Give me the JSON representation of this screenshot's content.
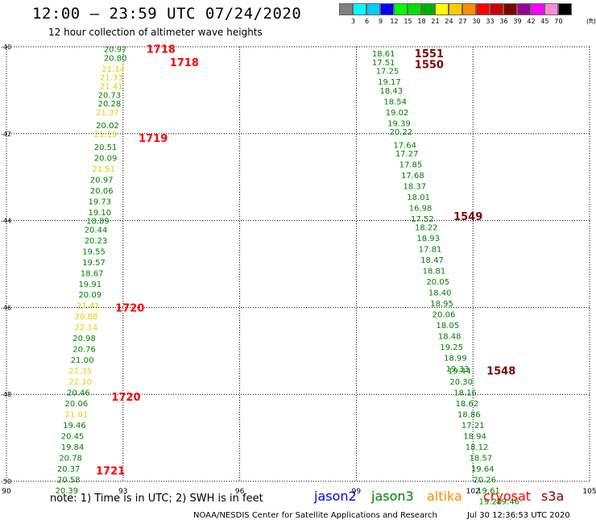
{
  "header": {
    "title": "12:00 — 23:59 UTC 07/24/2020",
    "subtitle": "12 hour collection of altimeter wave heights"
  },
  "colorbar": {
    "swatches": [
      "#808080",
      "#00ffff",
      "#00ccff",
      "#0000ff",
      "#00ff00",
      "#00e000",
      "#00b000",
      "#ffff00",
      "#ffcc00",
      "#ff8c00",
      "#ff0000",
      "#cc0000",
      "#800000",
      "#990099",
      "#ff00ff",
      "#ff88dd",
      "#000000"
    ],
    "labels": [
      "3",
      "6",
      "9",
      "12",
      "15",
      "18",
      "21",
      "24",
      "27",
      "30",
      "33",
      "36",
      "39",
      "42",
      "45",
      "70"
    ],
    "unit": "(ft)"
  },
  "note": "note:  1) Time is in UTC;  2) SWH is in feet",
  "satellites": [
    {
      "name": "jason2",
      "color": "#0000ff"
    },
    {
      "name": "jason3",
      "color": "#008000"
    },
    {
      "name": "altika",
      "color": "#ff8c00"
    },
    {
      "name": "cryosat",
      "color": "#ff0000"
    },
    {
      "name": "s3a",
      "color": "#800000"
    }
  ],
  "footer": {
    "credit": "NOAA/NESDIS Center for Satellite Applications and Research",
    "generated": "Jul 30 12:36:53 UTC 2020"
  },
  "chart_data": {
    "type": "scatter",
    "xlim": [
      90,
      105
    ],
    "ylim": [
      -50,
      -40
    ],
    "x_ticks": [
      "90",
      "93",
      "96",
      "99",
      "102",
      "105"
    ],
    "y_ticks": [
      "-40",
      "-42",
      "-44",
      "-46",
      "-48",
      "-50"
    ],
    "grid": true,
    "series": [
      {
        "satellite": "cryosat",
        "points": [
          {
            "lon": 92.8,
            "lat": -40.05,
            "swh": "20.97",
            "color": "#008000"
          },
          {
            "lon": 92.8,
            "lat": -40.25,
            "swh": "20.80",
            "color": "#008000"
          },
          {
            "lon": 92.75,
            "lat": -40.5,
            "swh": "21.14",
            "color": "#e0d000"
          },
          {
            "lon": 92.7,
            "lat": -40.7,
            "swh": "21.33",
            "color": "#e0d000"
          },
          {
            "lon": 92.7,
            "lat": -40.9,
            "swh": "21.41",
            "color": "#e0d000"
          },
          {
            "lon": 92.65,
            "lat": -41.1,
            "swh": "20.73",
            "color": "#008000"
          },
          {
            "lon": 92.65,
            "lat": -41.3,
            "swh": "20.28",
            "color": "#008000"
          },
          {
            "lon": 92.6,
            "lat": -41.5,
            "swh": "21.37",
            "color": "#e0d000"
          },
          {
            "lon": 92.6,
            "lat": -41.8,
            "swh": "20.02",
            "color": "#008000"
          },
          {
            "lon": 92.55,
            "lat": -42.0,
            "swh": "21.19",
            "color": "#e0d000"
          },
          {
            "lon": 92.55,
            "lat": -42.3,
            "swh": "20.51",
            "color": "#008000"
          },
          {
            "lon": 92.55,
            "lat": -42.55,
            "swh": "20.09",
            "color": "#008000"
          },
          {
            "lon": 92.5,
            "lat": -42.8,
            "swh": "21.51",
            "color": "#e0d000"
          },
          {
            "lon": 92.45,
            "lat": -43.05,
            "swh": "20.97",
            "color": "#008000"
          },
          {
            "lon": 92.45,
            "lat": -43.3,
            "swh": "20.06",
            "color": "#008000"
          },
          {
            "lon": 92.4,
            "lat": -43.55,
            "swh": "19.73",
            "color": "#008000"
          },
          {
            "lon": 92.4,
            "lat": -43.8,
            "swh": "19.10",
            "color": "#008000"
          },
          {
            "lon": 92.35,
            "lat": -44.0,
            "swh": "18.89",
            "color": "#008000"
          },
          {
            "lon": 92.3,
            "lat": -44.2,
            "swh": "20.44",
            "color": "#008000"
          },
          {
            "lon": 92.3,
            "lat": -44.45,
            "swh": "20.23",
            "color": "#008000"
          },
          {
            "lon": 92.25,
            "lat": -44.7,
            "swh": "19.55",
            "color": "#008000"
          },
          {
            "lon": 92.25,
            "lat": -44.95,
            "swh": "19.57",
            "color": "#008000"
          },
          {
            "lon": 92.2,
            "lat": -45.2,
            "swh": "18.67",
            "color": "#008000"
          },
          {
            "lon": 92.15,
            "lat": -45.45,
            "swh": "19.91",
            "color": "#008000"
          },
          {
            "lon": 92.15,
            "lat": -45.7,
            "swh": "20.09",
            "color": "#008000"
          },
          {
            "lon": 92.1,
            "lat": -45.95,
            "swh": "21.41",
            "color": "#e0d000"
          },
          {
            "lon": 92.05,
            "lat": -46.2,
            "swh": "20.88",
            "color": "#e0d000"
          },
          {
            "lon": 92.05,
            "lat": -46.45,
            "swh": "22.14",
            "color": "#e0d000"
          },
          {
            "lon": 92.0,
            "lat": -46.7,
            "swh": "20.98",
            "color": "#008000"
          },
          {
            "lon": 92.0,
            "lat": -46.95,
            "swh": "20.76",
            "color": "#008000"
          },
          {
            "lon": 91.95,
            "lat": -47.2,
            "swh": "21.00",
            "color": "#008000"
          },
          {
            "lon": 91.9,
            "lat": -47.45,
            "swh": "21.35",
            "color": "#e0d000"
          },
          {
            "lon": 91.9,
            "lat": -47.7,
            "swh": "22.10",
            "color": "#e0d000"
          },
          {
            "lon": 91.85,
            "lat": -47.95,
            "swh": "20.46",
            "color": "#008000"
          },
          {
            "lon": 91.8,
            "lat": -48.2,
            "swh": "20.06",
            "color": "#008000"
          },
          {
            "lon": 91.8,
            "lat": -48.45,
            "swh": "21.01",
            "color": "#e0d000"
          },
          {
            "lon": 91.75,
            "lat": -48.7,
            "swh": "19.46",
            "color": "#008000"
          },
          {
            "lon": 91.7,
            "lat": -48.95,
            "swh": "20.45",
            "color": "#008000"
          },
          {
            "lon": 91.7,
            "lat": -49.2,
            "swh": "19.84",
            "color": "#008000"
          },
          {
            "lon": 91.65,
            "lat": -49.45,
            "swh": "20.78",
            "color": "#008000"
          },
          {
            "lon": 91.6,
            "lat": -49.7,
            "swh": "20.37",
            "color": "#008000"
          },
          {
            "lon": 91.6,
            "lat": -49.95,
            "swh": "20.58",
            "color": "#008000"
          },
          {
            "lon": 91.55,
            "lat": -50.2,
            "swh": "20.39",
            "color": "#008000"
          }
        ],
        "time_labels": [
          {
            "lon": 93.6,
            "lat": -40.05,
            "text": "1718"
          },
          {
            "lon": 94.2,
            "lat": -40.35,
            "text": "1718"
          },
          {
            "lon": 93.4,
            "lat": -42.1,
            "text": "1719"
          },
          {
            "lon": 92.8,
            "lat": -46.0,
            "text": "1720"
          },
          {
            "lon": 92.7,
            "lat": -48.05,
            "text": "1720"
          },
          {
            "lon": 92.3,
            "lat": -49.75,
            "text": "1721"
          }
        ]
      },
      {
        "satellite": "s3a",
        "points": [
          {
            "lon": 99.7,
            "lat": -40.15,
            "swh": "18.61",
            "color": "#008000"
          },
          {
            "lon": 99.7,
            "lat": -40.35,
            "swh": "17.51",
            "color": "#008000"
          },
          {
            "lon": 99.8,
            "lat": -40.55,
            "swh": "17.25",
            "color": "#008000"
          },
          {
            "lon": 99.85,
            "lat": -40.8,
            "swh": "19.17",
            "color": "#008000"
          },
          {
            "lon": 99.9,
            "lat": -41.0,
            "swh": "18.43",
            "color": "#008000"
          },
          {
            "lon": 100.0,
            "lat": -41.25,
            "swh": "18.54",
            "color": "#008000"
          },
          {
            "lon": 100.05,
            "lat": -41.5,
            "swh": "19.02",
            "color": "#008000"
          },
          {
            "lon": 100.1,
            "lat": -41.75,
            "swh": "19.39",
            "color": "#008000"
          },
          {
            "lon": 100.15,
            "lat": -41.95,
            "swh": "20.22",
            "color": "#008000"
          },
          {
            "lon": 100.25,
            "lat": -42.25,
            "swh": "17.64",
            "color": "#008000"
          },
          {
            "lon": 100.3,
            "lat": -42.45,
            "swh": "17.27",
            "color": "#008000"
          },
          {
            "lon": 100.4,
            "lat": -42.7,
            "swh": "17.85",
            "color": "#008000"
          },
          {
            "lon": 100.45,
            "lat": -42.95,
            "swh": "17.68",
            "color": "#008000"
          },
          {
            "lon": 100.5,
            "lat": -43.2,
            "swh": "18.37",
            "color": "#008000"
          },
          {
            "lon": 100.6,
            "lat": -43.45,
            "swh": "18.01",
            "color": "#008000"
          },
          {
            "lon": 100.65,
            "lat": -43.7,
            "swh": "16.98",
            "color": "#008000"
          },
          {
            "lon": 100.7,
            "lat": -43.95,
            "swh": "17.52",
            "color": "#008000"
          },
          {
            "lon": 100.8,
            "lat": -44.15,
            "swh": "18.22",
            "color": "#008000"
          },
          {
            "lon": 100.85,
            "lat": -44.4,
            "swh": "18.93",
            "color": "#008000"
          },
          {
            "lon": 100.9,
            "lat": -44.65,
            "swh": "17.81",
            "color": "#008000"
          },
          {
            "lon": 100.95,
            "lat": -44.9,
            "swh": "18.47",
            "color": "#008000"
          },
          {
            "lon": 101.0,
            "lat": -45.15,
            "swh": "18.81",
            "color": "#008000"
          },
          {
            "lon": 101.1,
            "lat": -45.4,
            "swh": "20.05",
            "color": "#008000"
          },
          {
            "lon": 101.15,
            "lat": -45.65,
            "swh": "18.40",
            "color": "#008000"
          },
          {
            "lon": 101.2,
            "lat": -45.9,
            "swh": "18.95",
            "color": "#008000"
          },
          {
            "lon": 101.25,
            "lat": -46.15,
            "swh": "20.06",
            "color": "#008000"
          },
          {
            "lon": 101.35,
            "lat": -46.4,
            "swh": "18.05",
            "color": "#008000"
          },
          {
            "lon": 101.4,
            "lat": -46.65,
            "swh": "18.48",
            "color": "#008000"
          },
          {
            "lon": 101.45,
            "lat": -46.9,
            "swh": "19.25",
            "color": "#008000"
          },
          {
            "lon": 101.55,
            "lat": -47.15,
            "swh": "18.99",
            "color": "#008000"
          },
          {
            "lon": 101.6,
            "lat": -47.4,
            "swh": "19.33",
            "color": "#008000"
          },
          {
            "lon": 101.65,
            "lat": -47.45,
            "swh": "19.44",
            "color": "#008000"
          },
          {
            "lon": 101.7,
            "lat": -47.7,
            "swh": "20.30",
            "color": "#008000"
          },
          {
            "lon": 101.8,
            "lat": -47.95,
            "swh": "18.16",
            "color": "#008000"
          },
          {
            "lon": 101.85,
            "lat": -48.2,
            "swh": "18.62",
            "color": "#008000"
          },
          {
            "lon": 101.9,
            "lat": -48.45,
            "swh": "18.86",
            "color": "#008000"
          },
          {
            "lon": 102.0,
            "lat": -48.7,
            "swh": "17.21",
            "color": "#008000"
          },
          {
            "lon": 102.05,
            "lat": -48.95,
            "swh": "18.94",
            "color": "#008000"
          },
          {
            "lon": 102.1,
            "lat": -49.2,
            "swh": "18.12",
            "color": "#008000"
          },
          {
            "lon": 102.2,
            "lat": -49.45,
            "swh": "18.57",
            "color": "#008000"
          },
          {
            "lon": 102.25,
            "lat": -49.7,
            "swh": "19.64",
            "color": "#008000"
          },
          {
            "lon": 102.3,
            "lat": -49.95,
            "swh": "20.26",
            "color": "#008000"
          },
          {
            "lon": 102.4,
            "lat": -50.2,
            "swh": "19.61",
            "color": "#008000"
          },
          {
            "lon": 102.45,
            "lat": -50.45,
            "swh": "19.20",
            "color": "#008000"
          },
          {
            "lon": 102.9,
            "lat": -50.45,
            "swh": "19.46",
            "color": "#008000"
          }
        ],
        "time_labels": [
          {
            "lon": 100.5,
            "lat": -40.15,
            "text": "1551"
          },
          {
            "lon": 100.5,
            "lat": -40.4,
            "text": "1550"
          },
          {
            "lon": 101.5,
            "lat": -43.9,
            "text": "1549"
          },
          {
            "lon": 102.35,
            "lat": -47.45,
            "text": "1548"
          }
        ]
      }
    ]
  }
}
